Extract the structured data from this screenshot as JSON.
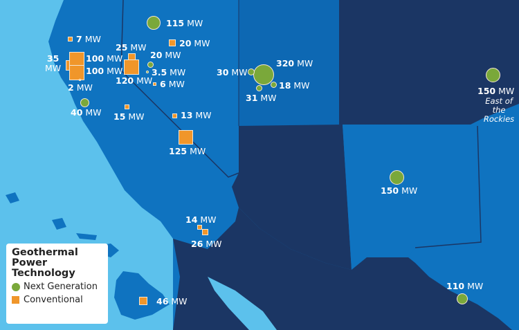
{
  "legend": {
    "title": "Geothermal Power Technology",
    "title_lines": [
      "Geothermal",
      "Power",
      "Technology"
    ],
    "items": [
      {
        "type": "next-generation",
        "label": "Next Generation"
      },
      {
        "type": "conventional",
        "label": "Conventional"
      }
    ]
  },
  "colors": {
    "ocean": "#5cc1ec",
    "land": "#0f73c0",
    "dark_region": "#1b3664",
    "next_generation": "#7aa83a",
    "conventional": "#f0962a"
  },
  "sites": [
    {
      "type": "next-generation",
      "value": "115",
      "unit": "MW"
    },
    {
      "type": "conventional",
      "value": "7",
      "unit": "MW"
    },
    {
      "type": "conventional",
      "value": "20",
      "unit": "MW"
    },
    {
      "type": "conventional",
      "value": "25",
      "unit": "MW"
    },
    {
      "type": "conventional",
      "value": "35",
      "unit": "MW"
    },
    {
      "type": "conventional",
      "value": "100",
      "unit": "MW"
    },
    {
      "type": "conventional",
      "value": "100",
      "unit": "MW"
    },
    {
      "type": "next-generation",
      "value": "20",
      "unit": "MW"
    },
    {
      "type": "next-generation",
      "value": "3.5",
      "unit": "MW"
    },
    {
      "type": "conventional",
      "value": "120",
      "unit": "MW"
    },
    {
      "type": "conventional",
      "value": "6",
      "unit": "MW"
    },
    {
      "type": "conventional",
      "value": "2",
      "unit": "MW"
    },
    {
      "type": "next-generation",
      "value": "40",
      "unit": "MW"
    },
    {
      "type": "conventional",
      "value": "15",
      "unit": "MW"
    },
    {
      "type": "conventional",
      "value": "13",
      "unit": "MW"
    },
    {
      "type": "conventional",
      "value": "125",
      "unit": "MW"
    },
    {
      "type": "next-generation",
      "value": "320",
      "unit": "MW"
    },
    {
      "type": "next-generation",
      "value": "30",
      "unit": "MW"
    },
    {
      "type": "next-generation",
      "value": "31",
      "unit": "MW"
    },
    {
      "type": "next-generation",
      "value": "18",
      "unit": "MW"
    },
    {
      "type": "next-generation",
      "value": "150",
      "unit": "MW"
    },
    {
      "type": "next-generation",
      "value": "150",
      "unit": "MW"
    },
    {
      "type": "conventional",
      "value": "14",
      "unit": "MW"
    },
    {
      "type": "conventional",
      "value": "26",
      "unit": "MW"
    },
    {
      "type": "conventional",
      "value": "46",
      "unit": "MW"
    },
    {
      "type": "next-generation",
      "value": "110",
      "unit": "MW"
    }
  ],
  "note": "East of the Rockies"
}
